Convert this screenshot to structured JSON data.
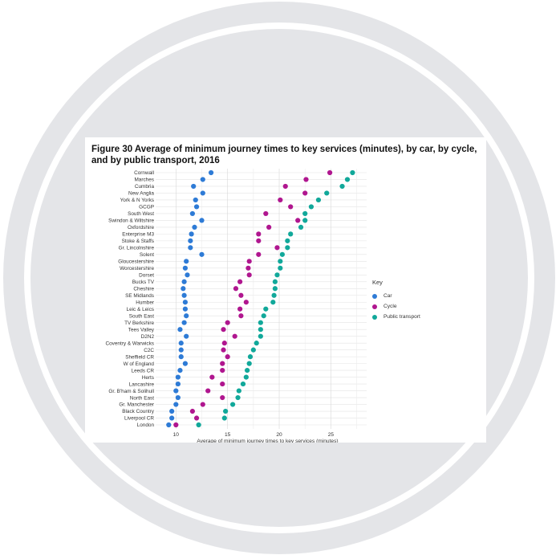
{
  "figure": {
    "title": "Figure 30 Average of minimum journey times to key services (minutes), by car, by cycle, and by public transport, 2016"
  },
  "legend": {
    "title": "Key",
    "items": [
      {
        "label": "Car",
        "color": "#2e7bd6"
      },
      {
        "label": "Cycle",
        "color": "#b0168f"
      },
      {
        "label": "Public transport",
        "color": "#11a89a"
      }
    ]
  },
  "chart_data": {
    "type": "scatter",
    "title": "Figure 30 Average of minimum journey times to key services (minutes), by car, by cycle, and by public transport, 2016",
    "xlabel": "Average of minimum journey times to key services (minutes)",
    "ylabel": "",
    "xlim": [
      8.5,
      28
    ],
    "xticks": [
      10,
      15,
      20,
      25
    ],
    "grid": true,
    "legend_position": "right",
    "categories": [
      "Cornwall",
      "Marches",
      "Cumbria",
      "New Anglia",
      "York & N Yorks",
      "GCGP",
      "South West",
      "Swindon & Wiltshire",
      "Oxfordshire",
      "Enterprise M3",
      "Stoke & Staffs",
      "Gr. Lincolnshire",
      "Solent",
      "Gloucestershire",
      "Worcestershire",
      "Dorset",
      "Bucks TV",
      "Cheshire",
      "SE Midlands",
      "Humber",
      "Leic & Leics",
      "South East",
      "TV Berkshire",
      "Tees Valley",
      "D2N2",
      "Coventry & Warwicks",
      "C2C",
      "Sheffield CR",
      "W of England",
      "Leeds CR",
      "Herts",
      "Lancashire",
      "Gr. B'ham & Solihull",
      "North East",
      "Gr. Manchester",
      "Black Country",
      "Liverpool CR",
      "London"
    ],
    "series": [
      {
        "name": "Car",
        "color": "#2e7bd6",
        "values": [
          13.4,
          12.6,
          11.7,
          12.6,
          11.9,
          12.0,
          11.6,
          12.5,
          11.8,
          11.5,
          11.4,
          11.4,
          12.5,
          11.0,
          10.9,
          11.1,
          10.8,
          10.7,
          10.8,
          10.9,
          10.9,
          11.0,
          10.8,
          10.4,
          11.0,
          10.5,
          10.5,
          10.5,
          10.9,
          10.4,
          10.2,
          10.2,
          10.0,
          10.2,
          10.0,
          9.6,
          9.6,
          9.3
        ]
      },
      {
        "name": "Cycle",
        "color": "#b0168f",
        "values": [
          24.9,
          22.6,
          20.6,
          22.5,
          20.1,
          21.1,
          18.7,
          21.8,
          19.0,
          18.0,
          18.0,
          19.8,
          18.0,
          17.1,
          17.0,
          17.1,
          16.2,
          15.8,
          16.3,
          16.8,
          16.2,
          16.3,
          15.0,
          14.6,
          15.7,
          14.7,
          14.6,
          15.0,
          14.5,
          14.5,
          13.5,
          14.5,
          13.1,
          14.5,
          12.6,
          11.6,
          12.0,
          10.0
        ]
      },
      {
        "name": "Public transport",
        "color": "#11a89a",
        "values": [
          27.1,
          26.6,
          26.1,
          24.6,
          23.8,
          23.1,
          22.5,
          22.5,
          22.1,
          21.1,
          20.8,
          20.8,
          20.3,
          20.1,
          20.1,
          19.8,
          19.6,
          19.6,
          19.5,
          19.4,
          18.7,
          18.5,
          18.2,
          18.2,
          18.2,
          17.8,
          17.5,
          17.2,
          17.1,
          16.9,
          16.8,
          16.5,
          16.1,
          16.0,
          15.5,
          14.8,
          14.7,
          12.2
        ]
      }
    ]
  }
}
